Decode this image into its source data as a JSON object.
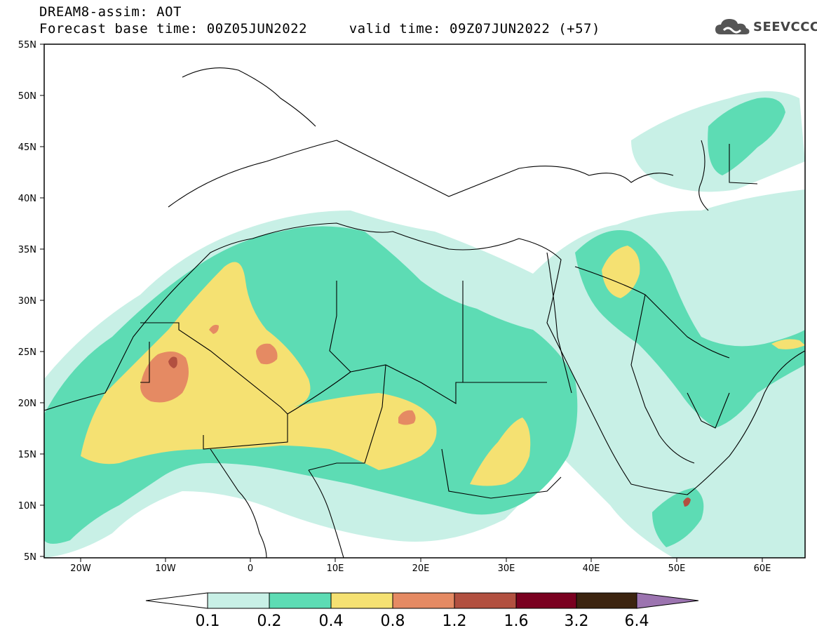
{
  "title": {
    "line1": "DREAM8-assim: AOT",
    "line2": "Forecast base time: 00Z05JUN2022     valid time: 09Z07JUN2022 (+57)"
  },
  "logo": {
    "text": "SEEVCCC",
    "icon": "cloud-icon"
  },
  "map": {
    "region": "North Africa, Middle East and Southern Europe",
    "lat_labels": [
      "55N",
      "50N",
      "45N",
      "40N",
      "35N",
      "30N",
      "25N",
      "20N",
      "15N",
      "10N",
      "5N"
    ],
    "lon_labels": [
      "20W",
      "10W",
      "0",
      "10E",
      "20E",
      "30E",
      "40E",
      "50E",
      "60E"
    ]
  },
  "colorbar": {
    "labels": [
      "0.1",
      "0.2",
      "0.4",
      "0.8",
      "1.2",
      "1.6",
      "3.2",
      "6.4"
    ],
    "colors": [
      "#ffffff",
      "#c8f0e6",
      "#5ddcb4",
      "#f5e172",
      "#e58a63",
      "#b25040",
      "#7a0020",
      "#3c2410",
      "#9c74b0"
    ]
  },
  "palette": {
    "very_low": "#c8f0e6",
    "low": "#5ddcb4",
    "medium": "#f5e172",
    "high": "#e58a63",
    "very_high": "#b25040"
  }
}
